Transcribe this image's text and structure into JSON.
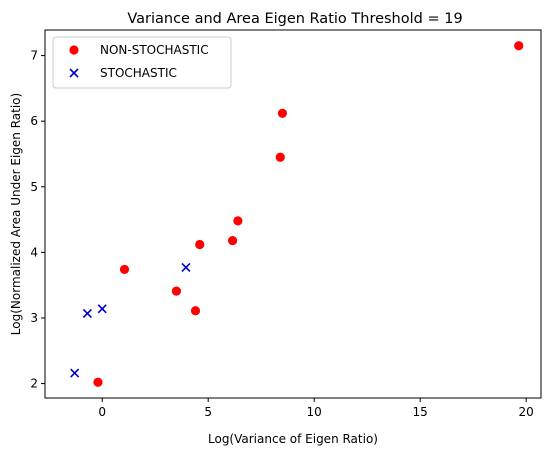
{
  "chart_data": {
    "type": "scatter",
    "title": "Variance and  Area Eigen Ratio Threshold = 19",
    "xlabel": "Log(Variance of Eigen Ratio)",
    "ylabel": "Log(Normalized Area Under Eigen Ratio)",
    "xlim": [
      -2.7,
      20.7
    ],
    "ylim": [
      1.78,
      7.39
    ],
    "xticks": [
      0,
      5,
      10,
      15,
      20
    ],
    "yticks": [
      2,
      3,
      4,
      5,
      6,
      7
    ],
    "legend_position": "upper left",
    "grid": false,
    "series": [
      {
        "name": "NON-STOCHASTIC",
        "marker": "circle",
        "color": "#ff0000",
        "points": [
          {
            "x": -0.2,
            "y": 2.02
          },
          {
            "x": 1.05,
            "y": 3.74
          },
          {
            "x": 3.5,
            "y": 3.41
          },
          {
            "x": 4.4,
            "y": 3.11
          },
          {
            "x": 4.6,
            "y": 4.12
          },
          {
            "x": 6.15,
            "y": 4.18
          },
          {
            "x": 6.4,
            "y": 4.48
          },
          {
            "x": 8.4,
            "y": 5.45
          },
          {
            "x": 8.5,
            "y": 6.12
          },
          {
            "x": 19.65,
            "y": 7.15
          }
        ]
      },
      {
        "name": "STOCHASTIC",
        "marker": "x",
        "color": "#0000cc",
        "points": [
          {
            "x": -1.3,
            "y": 2.16
          },
          {
            "x": -0.7,
            "y": 3.07
          },
          {
            "x": 0.0,
            "y": 3.14
          },
          {
            "x": 3.95,
            "y": 3.77
          }
        ]
      }
    ]
  }
}
